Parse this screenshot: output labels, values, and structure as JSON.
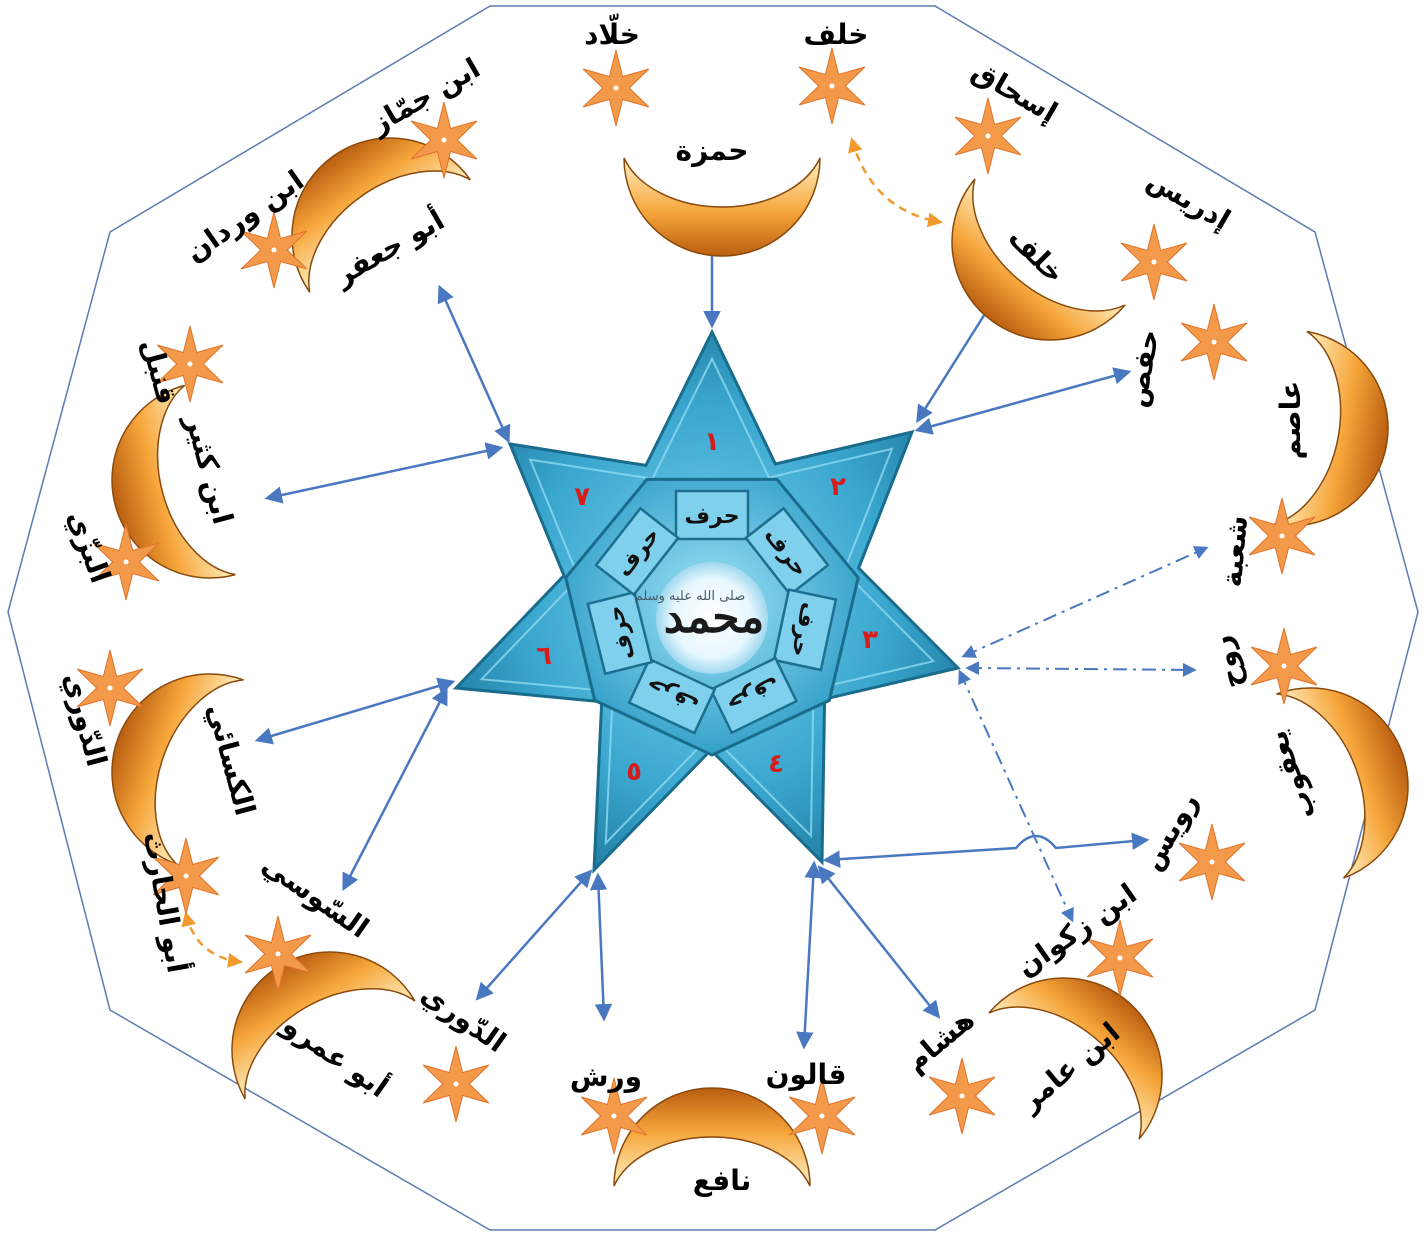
{
  "center": {
    "name": "محمد",
    "blessing": "صلى الله عليه وسلم",
    "harf_label": "حرف"
  },
  "star_points": [
    "١",
    "٢",
    "٣",
    "٤",
    "٥",
    "٦",
    "٧"
  ],
  "readers": [
    {
      "id": "hamza",
      "name": "حمزة",
      "narrators": [
        "خلّاد",
        "خلف"
      ]
    },
    {
      "id": "khalaf",
      "name": "خلف",
      "narrators": [
        "إسحاق",
        "إدريس"
      ]
    },
    {
      "id": "asim",
      "name": "عاصم",
      "narrators": [
        "حفص",
        "شعبة"
      ]
    },
    {
      "id": "yaqub",
      "name": "يعقوب",
      "narrators": [
        "روح",
        "رويس"
      ]
    },
    {
      "id": "ibnamir",
      "name": "ابن عامر",
      "narrators": [
        "ابن زكوان",
        "هشام"
      ]
    },
    {
      "id": "nafi",
      "name": "نافع",
      "narrators": [
        "قالون",
        "ورش"
      ]
    },
    {
      "id": "abuamr",
      "name": "أبو عمرو",
      "narrators": [
        "السّوسي",
        "الدّوري"
      ]
    },
    {
      "id": "kisai",
      "name": "الكسائي",
      "narrators": [
        "الدّوري",
        "أبو الحارث"
      ]
    },
    {
      "id": "ibnkathir",
      "name": "ابن كثير",
      "narrators": [
        "قنبل",
        "البزّي"
      ]
    },
    {
      "id": "abujafar",
      "name": "أبو جعفر",
      "narrators": [
        "ابن جمّاز",
        "ابن وردان"
      ]
    }
  ],
  "colors": {
    "octagon_stroke": "#5b7bb2",
    "star_fill": "#3ea9cf",
    "star_dark": "#1f7ea0",
    "arrow": "#4a78c0",
    "crescent": "#f29a2e",
    "small_star": "#f39a4a",
    "dashed_orange": "#f29a2e",
    "number": "#d81b1b"
  }
}
